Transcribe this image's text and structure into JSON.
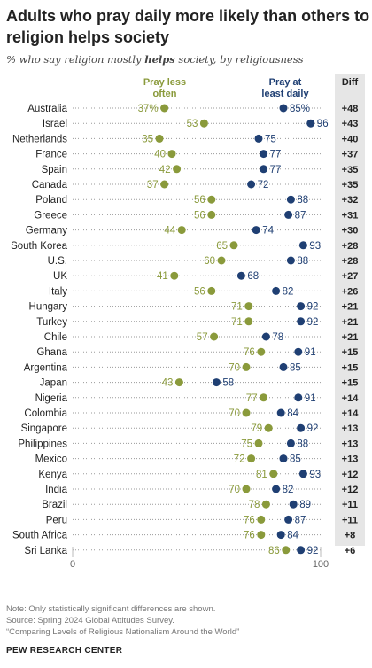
{
  "title_line1": "Adults who pray daily more likely than others to say",
  "title_line2": "religion helps society",
  "subtitle": {
    "pre": "% who say religion mostly ",
    "bold": "helps",
    "post": " society, by religiousness"
  },
  "legend": {
    "less_line1": "Pray less",
    "less_line2": "often",
    "daily_line1": "Pray at",
    "daily_line2": "least daily",
    "diff": "Diff"
  },
  "colors": {
    "less_often": "#8a9a3b",
    "daily": "#1f3f73",
    "diff_bg": "#e6e6e6",
    "dots_line": "#9a9a9a"
  },
  "chart_data": {
    "type": "dot",
    "xlim": [
      0,
      100
    ],
    "axis_ticks": [
      0,
      100
    ],
    "categories": [
      "Australia",
      "Israel",
      "Netherlands",
      "France",
      "Spain",
      "Canada",
      "Poland",
      "Greece",
      "Germany",
      "South Korea",
      "U.S.",
      "UK",
      "Italy",
      "Hungary",
      "Turkey",
      "Chile",
      "Ghana",
      "Argentina",
      "Japan",
      "Nigeria",
      "Colombia",
      "Singapore",
      "Philippines",
      "Mexico",
      "Kenya",
      "India",
      "Brazil",
      "Peru",
      "South Africa",
      "Sri Lanka"
    ],
    "series": [
      {
        "name": "Pray less often",
        "values": [
          37,
          53,
          35,
          40,
          42,
          37,
          56,
          56,
          44,
          65,
          60,
          41,
          56,
          71,
          71,
          57,
          76,
          70,
          43,
          77,
          70,
          79,
          75,
          72,
          81,
          70,
          78,
          76,
          76,
          86
        ]
      },
      {
        "name": "Pray at least daily",
        "values": [
          85,
          96,
          75,
          77,
          77,
          72,
          88,
          87,
          74,
          93,
          88,
          68,
          82,
          92,
          92,
          78,
          91,
          85,
          58,
          91,
          84,
          92,
          88,
          85,
          93,
          82,
          89,
          87,
          84,
          92
        ]
      }
    ],
    "value_labels": {
      "less_often": [
        "37%",
        "53",
        "35",
        "40",
        "42",
        "37",
        "56",
        "56",
        "44",
        "65",
        "60",
        "41",
        "56",
        "71",
        "71",
        "57",
        "76",
        "70",
        "43",
        "77",
        "70",
        "79",
        "75",
        "72",
        "81",
        "70",
        "78",
        "76",
        "76",
        "86"
      ],
      "daily": [
        "85%",
        "96",
        "75",
        "77",
        "77",
        "72",
        "88",
        "87",
        "74",
        "93",
        "88",
        "68",
        "82",
        "92",
        "92",
        "78",
        "91",
        "85",
        "58",
        "91",
        "84",
        "92",
        "88",
        "85",
        "93",
        "82",
        "89",
        "87",
        "84",
        "92"
      ]
    },
    "diff": [
      "+48",
      "+43",
      "+40",
      "+37",
      "+35",
      "+35",
      "+32",
      "+31",
      "+30",
      "+28",
      "+28",
      "+27",
      "+26",
      "+21",
      "+21",
      "+21",
      "+15",
      "+15",
      "+15",
      "+14",
      "+14",
      "+13",
      "+13",
      "+13",
      "+12",
      "+12",
      "+11",
      "+11",
      "+8",
      "+6"
    ]
  },
  "notes": {
    "line1": "Note: Only statistically significant differences are shown.",
    "line2": "Source: Spring 2024 Global Attitudes Survey.",
    "line3": "“Comparing Levels of Religious Nationalism Around the World”"
  },
  "brand": "PEW RESEARCH CENTER"
}
